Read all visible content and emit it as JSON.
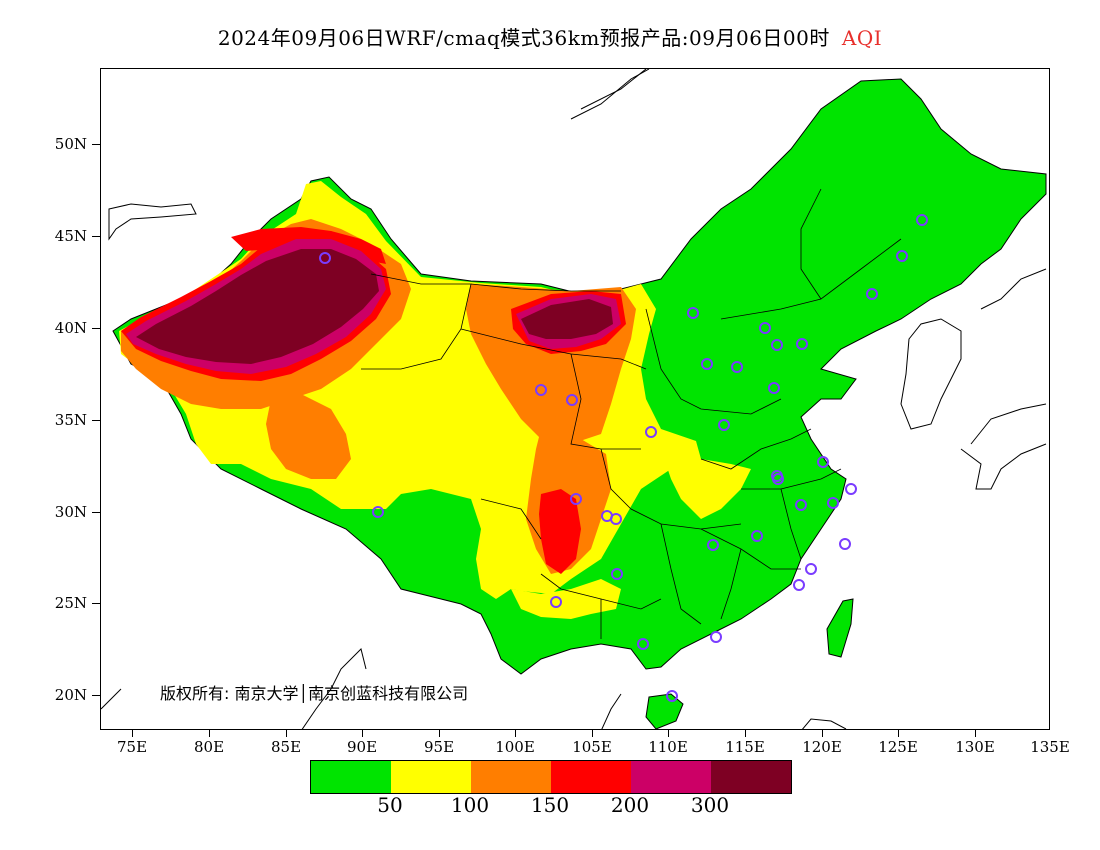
{
  "title": {
    "text": "2024年09月06日WRF/cmaq模式36km预报产品:09月06日00时",
    "variable": "AQI"
  },
  "copyright": "版权所有: 南京大学│南京创蓝科技有限公司",
  "axes": {
    "x_labels": [
      "75E",
      "80E",
      "85E",
      "90E",
      "95E",
      "100E",
      "105E",
      "110E",
      "115E",
      "120E",
      "125E",
      "130E",
      "135E"
    ],
    "y_labels": [
      "50N",
      "45N",
      "40N",
      "35N",
      "30N",
      "25N",
      "20N"
    ]
  },
  "legend": {
    "colors": [
      "#00e400",
      "#ffff00",
      "#ff7e00",
      "#ff0000",
      "#cc0066",
      "#7e0023"
    ],
    "labels": [
      "50",
      "100",
      "150",
      "200",
      "300"
    ]
  },
  "colors": {
    "title_accent": "#e8302c",
    "station_marker": "#7a3cff"
  }
}
